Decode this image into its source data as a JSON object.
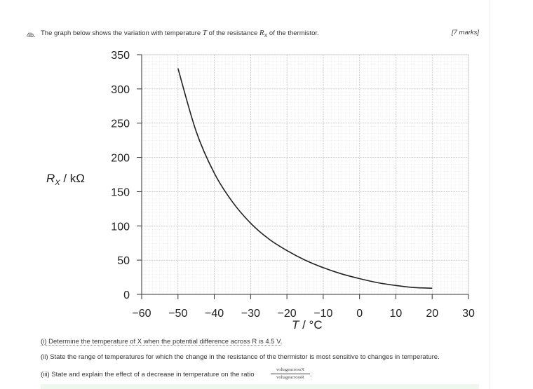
{
  "question": {
    "number": "4b.",
    "text_prefix": "The graph below shows the variation with temperature ",
    "text_T": "T",
    "text_middle": " of the resistance ",
    "text_R": "R",
    "text_R_sub": "X",
    "text_suffix": " of the thermistor.",
    "marks": "[7 marks]"
  },
  "chart_data": {
    "type": "line",
    "ylabel_main": "R",
    "ylabel_sub": "X",
    "ylabel_unit": " / kΩ",
    "xlabel_var": "T",
    "xlabel_unit": " / °C",
    "xlim": [
      -60,
      30
    ],
    "ylim": [
      0,
      350
    ],
    "x_ticks": [
      -60,
      -50,
      -40,
      -30,
      -20,
      -10,
      0,
      10,
      20,
      30
    ],
    "x_tick_labels": [
      "−60",
      "−50",
      "−40",
      "−30",
      "−20",
      "−10",
      "0",
      "10",
      "20",
      "30"
    ],
    "y_ticks": [
      0,
      50,
      100,
      150,
      200,
      250,
      300,
      350
    ],
    "y_tick_labels": [
      "0",
      "50",
      "100",
      "150",
      "200",
      "250",
      "300",
      "350"
    ],
    "grid": true,
    "series": [
      {
        "x": [
          -50,
          -45,
          -40,
          -35,
          -30,
          -25,
          -20,
          -15,
          -10,
          -5,
          0,
          5,
          10,
          15,
          20
        ],
        "y": [
          330,
          238,
          177,
          135,
          104,
          81,
          64,
          50,
          39,
          30,
          23,
          17,
          13,
          10,
          9
        ]
      }
    ]
  },
  "parts": {
    "i": "(i) Determine the temperature of X when the potential difference across R is 4.5 V.",
    "ii": "(ii) State the range of temperatures for which the change in the resistance of the thermistor is most sensitive to changes in temperature.",
    "iii": "(iii) State and explain the effect of a decrease in temperature on the ratio",
    "iii_ratio_num": "voltageacrossX",
    "iii_ratio_den": "voltageacrossR",
    "iii_end": "."
  }
}
